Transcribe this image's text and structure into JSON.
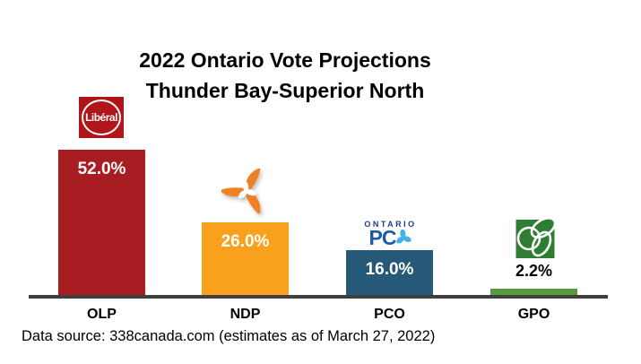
{
  "title": {
    "line1": "2022 Ontario Vote Projections",
    "line2": "Thunder Bay-Superior North"
  },
  "footer": {
    "data_source": "Data source: 338canada.com (estimates as of March 27, 2022)"
  },
  "logos": {
    "olp": {
      "icon": "liberal-logo",
      "text": "Libéral"
    },
    "ndp": {
      "icon": "ndp-trillium-logo"
    },
    "pco": {
      "icon": "ontario-pc-logo",
      "top_text": "ONTARIO",
      "main_text": "PC"
    },
    "gpo": {
      "icon": "green-party-logo"
    }
  },
  "colors": {
    "olp_bar": "#a71d21",
    "ndp_bar": "#f9a11c",
    "pco_bar": "#265877",
    "gpo_bar": "#579b3e",
    "axis": "#3f3f3f",
    "liberal_logo_red": "#b0151a",
    "ndp_logo_orange": "#ef8122",
    "pc_logo_blue": "#1b5aa5",
    "pc_trillium_cyan": "#45b2e3",
    "gpo_logo_green": "#2e7d33",
    "in_bar_label": "#ffffff",
    "above_bar_label": "#000000"
  },
  "chart_data": {
    "type": "bar",
    "title": "2022 Ontario Vote Projections — Thunder Bay-Superior North",
    "categories": [
      "OLP",
      "NDP",
      "PCO",
      "GPO"
    ],
    "values": [
      52.0,
      26.0,
      16.0,
      2.2
    ],
    "value_labels": [
      "52.0%",
      "26.0%",
      "16.0%",
      "2.2%"
    ],
    "bar_colors": [
      "#a71d21",
      "#f9a11c",
      "#265877",
      "#579b3e"
    ],
    "xlabel": "",
    "ylabel": "",
    "ylim": [
      0,
      55
    ],
    "grid": false,
    "legend": "none",
    "source": "Data source: 338canada.com (estimates as of March 27, 2022)"
  }
}
